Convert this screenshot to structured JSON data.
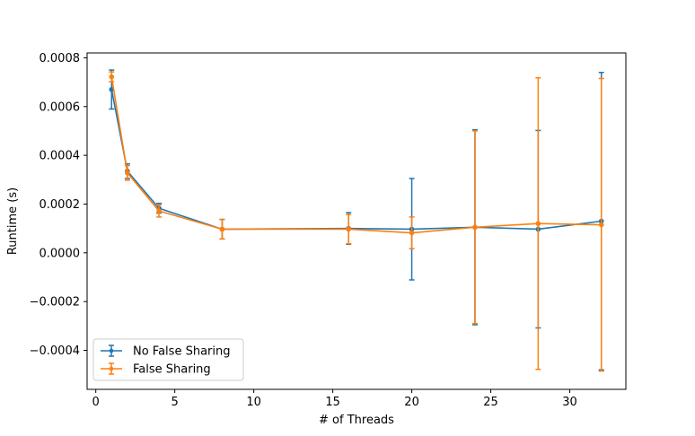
{
  "chart_data": {
    "type": "line",
    "title": "",
    "xlabel": "# of Threads",
    "ylabel": "Runtime (s)",
    "xlim": [
      -0.55,
      33.55
    ],
    "ylim": [
      -0.00056,
      0.00082
    ],
    "xticks": [
      0,
      5,
      10,
      15,
      20,
      25,
      30
    ],
    "xtick_labels": [
      "0",
      "5",
      "10",
      "15",
      "20",
      "25",
      "30"
    ],
    "yticks": [
      -0.0004,
      -0.0002,
      0.0,
      0.0002,
      0.0004,
      0.0006,
      0.0008
    ],
    "ytick_labels": [
      "−0.0004",
      "−0.0002",
      "0.0000",
      "0.0002",
      "0.0004",
      "0.0006",
      "0.0008"
    ],
    "legend_position": "lower-left",
    "x": [
      1,
      2,
      4,
      8,
      16,
      20,
      24,
      28,
      32
    ],
    "series": [
      {
        "name": "No False Sharing",
        "color": "#1f77b4",
        "values": [
          0.00067,
          0.000335,
          0.000183,
          9.7e-05,
          0.0001,
          9.7e-05,
          0.000105,
          9.7e-05,
          0.00013
        ],
        "errors": [
          8e-05,
          3e-05,
          2e-05,
          4e-05,
          6.5e-05,
          0.000208,
          0.0004,
          0.000405,
          0.00061
        ]
      },
      {
        "name": "False Sharing",
        "color": "#ff7f0e",
        "values": [
          0.000722,
          0.000328,
          0.000172,
          9.7e-05,
          9.7e-05,
          8.2e-05,
          0.000105,
          0.00012,
          0.000115
        ],
        "errors": [
          2e-05,
          3e-05,
          2.5e-05,
          4e-05,
          6e-05,
          6.5e-05,
          0.000395,
          0.000598,
          0.0006
        ]
      }
    ]
  }
}
